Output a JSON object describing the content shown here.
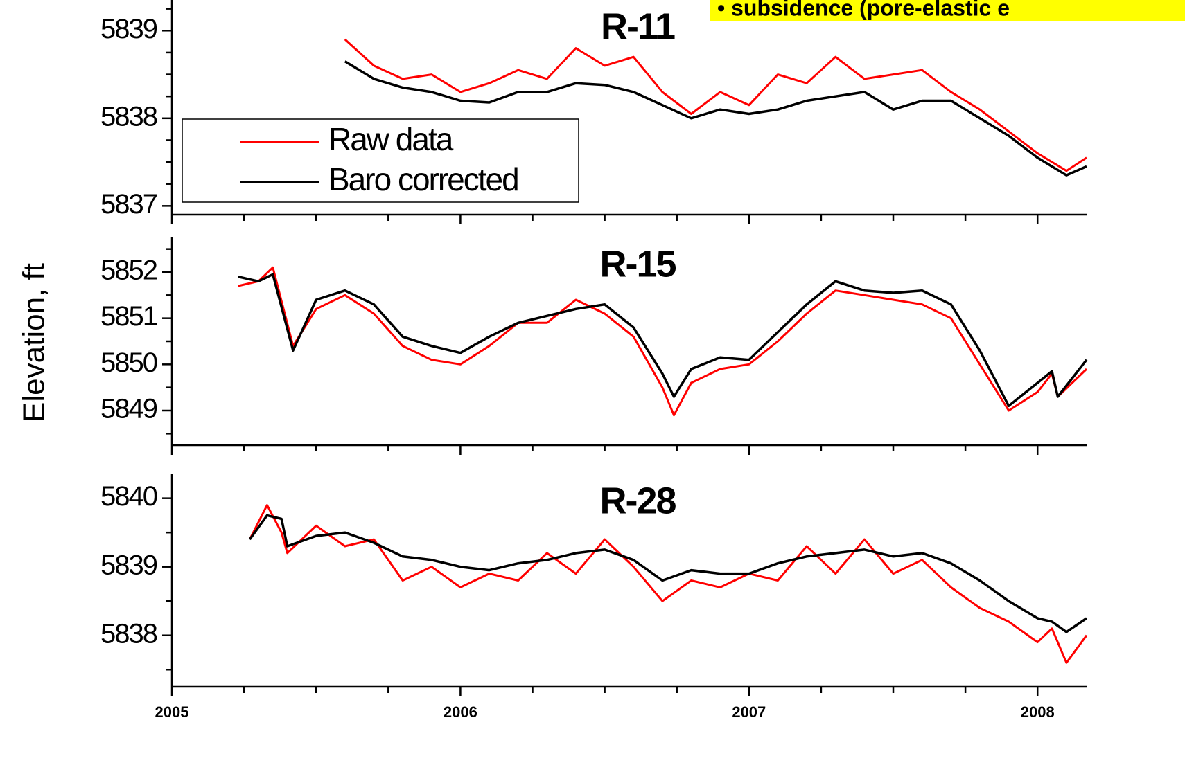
{
  "y_label": "Elevation, ft",
  "annotation": "• subsidence (pore-elastic e",
  "chart_data": [
    {
      "type": "line",
      "title": "R-11",
      "x": [
        2005.6,
        2005.7,
        2005.8,
        2005.9,
        2006.0,
        2006.1,
        2006.2,
        2006.3,
        2006.4,
        2006.5,
        2006.6,
        2006.7,
        2006.8,
        2006.9,
        2007.0,
        2007.1,
        2007.2,
        2007.3,
        2007.4,
        2007.5,
        2007.6,
        2007.7,
        2007.8,
        2007.9,
        2008.0,
        2008.1,
        2008.17
      ],
      "series": [
        {
          "name": "Raw data",
          "color": "#ff0000",
          "values": [
            5838.9,
            5838.6,
            5838.45,
            5838.5,
            5838.3,
            5838.4,
            5838.55,
            5838.45,
            5838.8,
            5838.6,
            5838.7,
            5838.3,
            5838.05,
            5838.3,
            5838.15,
            5838.5,
            5838.4,
            5838.7,
            5838.45,
            5838.5,
            5838.55,
            5838.3,
            5838.1,
            5837.85,
            5837.6,
            5837.4,
            5837.55
          ]
        },
        {
          "name": "Baro corrected",
          "color": "#000000",
          "values": [
            5838.65,
            5838.45,
            5838.35,
            5838.3,
            5838.2,
            5838.18,
            5838.3,
            5838.3,
            5838.4,
            5838.38,
            5838.3,
            5838.15,
            5838.0,
            5838.1,
            5838.05,
            5838.1,
            5838.2,
            5838.25,
            5838.3,
            5838.1,
            5838.2,
            5838.2,
            5838.0,
            5837.8,
            5837.55,
            5837.35,
            5837.45
          ]
        }
      ],
      "xlim": [
        2005,
        2008.17
      ],
      "xticks": [
        2005,
        2006,
        2007,
        2008
      ],
      "minor_xticks": [
        2005.25,
        2005.5,
        2005.75,
        2006.25,
        2006.5,
        2006.75,
        2007.25,
        2007.5,
        2007.75
      ],
      "ylim": [
        5836.9,
        5839.35
      ],
      "yticks": [
        5837,
        5838,
        5839
      ],
      "minor_yticks": [
        5837.25,
        5837.5,
        5837.75,
        5838.25,
        5838.5,
        5838.75,
        5839.25
      ],
      "legend": "left"
    },
    {
      "type": "line",
      "title": "R-15",
      "x": [
        2005.23,
        2005.3,
        2005.35,
        2005.42,
        2005.5,
        2005.6,
        2005.7,
        2005.8,
        2005.9,
        2006.0,
        2006.1,
        2006.2,
        2006.3,
        2006.4,
        2006.5,
        2006.6,
        2006.7,
        2006.74,
        2006.8,
        2006.9,
        2007.0,
        2007.1,
        2007.2,
        2007.3,
        2007.4,
        2007.5,
        2007.6,
        2007.7,
        2007.8,
        2007.9,
        2008.0,
        2008.05,
        2008.07,
        2008.17
      ],
      "series": [
        {
          "color": "#ff0000",
          "values": [
            5851.7,
            5851.8,
            5852.1,
            5850.4,
            5851.2,
            5851.5,
            5851.1,
            5850.4,
            5850.1,
            5850.0,
            5850.4,
            5850.9,
            5850.9,
            5851.4,
            5851.1,
            5850.6,
            5849.5,
            5848.9,
            5849.6,
            5849.9,
            5850.0,
            5850.5,
            5851.1,
            5851.6,
            5851.5,
            5851.4,
            5851.3,
            5851.0,
            5850.0,
            5849.0,
            5849.4,
            5849.8,
            5849.3,
            5849.9
          ]
        },
        {
          "color": "#000000",
          "values": [
            5851.9,
            5851.8,
            5851.95,
            5850.3,
            5851.4,
            5851.6,
            5851.3,
            5850.6,
            5850.4,
            5850.25,
            5850.6,
            5850.9,
            5851.05,
            5851.2,
            5851.3,
            5850.8,
            5849.8,
            5849.3,
            5849.9,
            5850.15,
            5850.1,
            5850.7,
            5851.3,
            5851.8,
            5851.6,
            5851.55,
            5851.6,
            5851.3,
            5850.3,
            5849.1,
            5849.6,
            5849.85,
            5849.3,
            5850.1
          ]
        }
      ],
      "xlim": [
        2005,
        2008.17
      ],
      "xticks": [
        2005,
        2006,
        2007,
        2008
      ],
      "minor_xticks": [
        2005.25,
        2005.5,
        2005.75,
        2006.25,
        2006.5,
        2006.75,
        2007.25,
        2007.5,
        2007.75
      ],
      "ylim": [
        5848.25,
        5852.75
      ],
      "yticks": [
        5849,
        5850,
        5851,
        5852
      ],
      "minor_yticks": [
        5848.5,
        5849.5,
        5850.5,
        5851.5,
        5852.5
      ]
    },
    {
      "type": "line",
      "title": "R-28",
      "x": [
        2005.27,
        2005.33,
        2005.38,
        2005.4,
        2005.5,
        2005.6,
        2005.7,
        2005.8,
        2005.9,
        2006.0,
        2006.1,
        2006.2,
        2006.3,
        2006.4,
        2006.5,
        2006.6,
        2006.7,
        2006.8,
        2006.9,
        2007.0,
        2007.1,
        2007.2,
        2007.3,
        2007.4,
        2007.5,
        2007.6,
        2007.7,
        2007.8,
        2007.9,
        2008.0,
        2008.05,
        2008.1,
        2008.17
      ],
      "series": [
        {
          "color": "#ff0000",
          "values": [
            5839.4,
            5839.9,
            5839.5,
            5839.2,
            5839.6,
            5839.3,
            5839.4,
            5838.8,
            5839.0,
            5838.7,
            5838.9,
            5838.8,
            5839.2,
            5838.9,
            5839.4,
            5839.0,
            5838.5,
            5838.8,
            5838.7,
            5838.9,
            5838.8,
            5839.3,
            5838.9,
            5839.4,
            5838.9,
            5839.1,
            5838.7,
            5838.4,
            5838.2,
            5837.9,
            5838.1,
            5837.6,
            5838.0
          ]
        },
        {
          "color": "#000000",
          "values": [
            5839.4,
            5839.75,
            5839.7,
            5839.3,
            5839.45,
            5839.5,
            5839.35,
            5839.15,
            5839.1,
            5839.0,
            5838.95,
            5839.05,
            5839.1,
            5839.2,
            5839.25,
            5839.1,
            5838.8,
            5838.95,
            5838.9,
            5838.9,
            5839.05,
            5839.15,
            5839.2,
            5839.25,
            5839.15,
            5839.2,
            5839.05,
            5838.8,
            5838.5,
            5838.25,
            5838.2,
            5838.05,
            5838.25
          ]
        }
      ],
      "xlim": [
        2005,
        2008.17
      ],
      "xticks": [
        2005,
        2006,
        2007,
        2008
      ],
      "minor_xticks": [
        2005.25,
        2005.5,
        2005.75,
        2006.25,
        2006.5,
        2006.75,
        2007.25,
        2007.5,
        2007.75
      ],
      "ylim": [
        5837.25,
        5840.35
      ],
      "yticks": [
        5838,
        5839,
        5840
      ],
      "minor_yticks": [
        5837.5,
        5838.5,
        5839.5
      ],
      "x_tick_labels": true
    }
  ]
}
